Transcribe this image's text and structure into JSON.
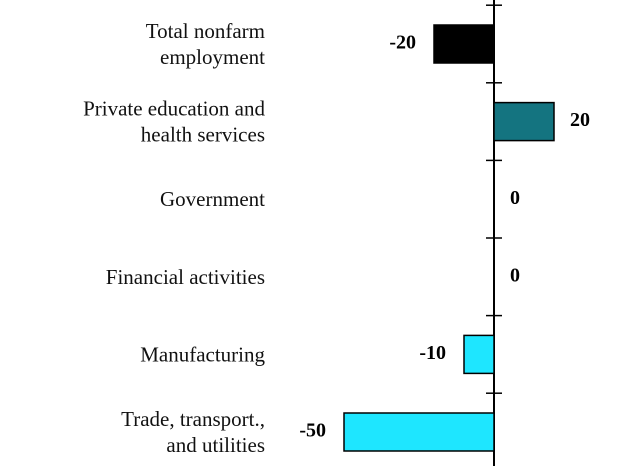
{
  "chart_data": {
    "type": "bar",
    "orientation": "horizontal",
    "categories": [
      "Total nonfarm\nemployment",
      "Private education and\nhealth services",
      "Government",
      "Financial activities",
      "Manufacturing",
      "Trade, transport.,\nand utilities"
    ],
    "values": [
      -20,
      20,
      0,
      0,
      -10,
      -50
    ],
    "colors": [
      "#000000",
      "#147480",
      "#1ee6ff",
      "#1ee6ff",
      "#1ee6ff",
      "#1ee6ff"
    ]
  }
}
